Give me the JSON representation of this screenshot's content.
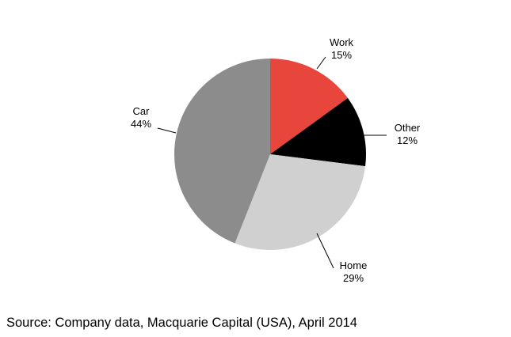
{
  "chart_data": {
    "type": "pie",
    "title": "",
    "start_angle_deg": 0,
    "direction": "clockwise",
    "slices": [
      {
        "label": "Work",
        "value": 15,
        "value_label": "15%",
        "color": "#e8453c"
      },
      {
        "label": "Other",
        "value": 12,
        "value_label": "12%",
        "color": "#000000"
      },
      {
        "label": "Home",
        "value": 29,
        "value_label": "29%",
        "color": "#d0d0d0"
      },
      {
        "label": "Car",
        "value": 44,
        "value_label": "44%",
        "color": "#8c8c8c"
      }
    ],
    "legend": "none"
  },
  "source_note": "Source: Company data, Macquarie Capital (USA), April 2014"
}
